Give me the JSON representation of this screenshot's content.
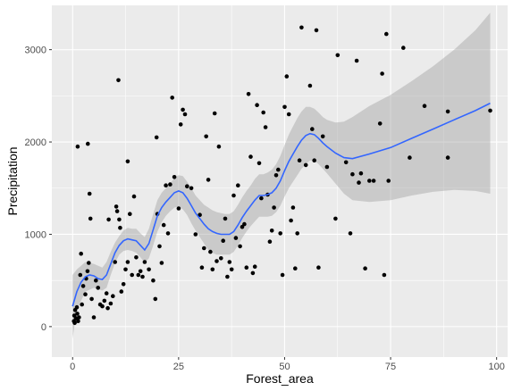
{
  "chart_data": {
    "type": "scatter",
    "xlabel": "Forest_area",
    "ylabel": "Precipitation",
    "xlim": [
      -4.9,
      102.6
    ],
    "ylim": [
      -330,
      3480
    ],
    "xticks": [
      0,
      25,
      50,
      75,
      100
    ],
    "yticks": [
      0,
      1000,
      2000,
      3000
    ],
    "grid": true,
    "colors": {
      "panel": "#ebebeb",
      "grid_major": "#ffffff",
      "point": "#000000",
      "smooth": "#3366ff",
      "ribbon": "#999999"
    },
    "points": [
      [
        0.3,
        60
      ],
      [
        0.4,
        120
      ],
      [
        0.5,
        40
      ],
      [
        0.6,
        180
      ],
      [
        0.8,
        90
      ],
      [
        1.0,
        210
      ],
      [
        1.1,
        140
      ],
      [
        1.3,
        60
      ],
      [
        1.5,
        100
      ],
      [
        1.2,
        1950
      ],
      [
        1.8,
        560
      ],
      [
        2.0,
        790
      ],
      [
        2.2,
        240
      ],
      [
        2.5,
        440
      ],
      [
        3.0,
        350
      ],
      [
        3.2,
        520
      ],
      [
        3.5,
        600
      ],
      [
        3.8,
        690
      ],
      [
        4.0,
        1440
      ],
      [
        3.6,
        1980
      ],
      [
        4.2,
        1170
      ],
      [
        4.5,
        300
      ],
      [
        5.0,
        100
      ],
      [
        5.5,
        500
      ],
      [
        6.0,
        420
      ],
      [
        6.5,
        240
      ],
      [
        7.0,
        220
      ],
      [
        7.5,
        280
      ],
      [
        8.0,
        360
      ],
      [
        8.3,
        200
      ],
      [
        8.5,
        1160
      ],
      [
        9.0,
        250
      ],
      [
        9.5,
        330
      ],
      [
        10.0,
        700
      ],
      [
        10.3,
        1300
      ],
      [
        10.5,
        1250
      ],
      [
        11.0,
        1160
      ],
      [
        11.2,
        1070
      ],
      [
        11.5,
        380
      ],
      [
        10.8,
        2670
      ],
      [
        12.0,
        460
      ],
      [
        12.5,
        620
      ],
      [
        13.0,
        700
      ],
      [
        13.5,
        1220
      ],
      [
        13.0,
        1790
      ],
      [
        14.0,
        560
      ],
      [
        14.5,
        1410
      ],
      [
        15.0,
        750
      ],
      [
        15.5,
        560
      ],
      [
        16.0,
        600
      ],
      [
        16.5,
        540
      ],
      [
        17.0,
        700
      ],
      [
        18.0,
        620
      ],
      [
        19.0,
        500
      ],
      [
        19.5,
        300
      ],
      [
        19.8,
        2050
      ],
      [
        20.0,
        1220
      ],
      [
        20.5,
        870
      ],
      [
        21.0,
        690
      ],
      [
        21.5,
        1100
      ],
      [
        22.0,
        1530
      ],
      [
        22.5,
        1010
      ],
      [
        23.0,
        1540
      ],
      [
        23.5,
        2480
      ],
      [
        24.0,
        1620
      ],
      [
        25.0,
        1280
      ],
      [
        25.5,
        2190
      ],
      [
        26.0,
        2350
      ],
      [
        26.5,
        2300
      ],
      [
        27.0,
        1520
      ],
      [
        28.0,
        1500
      ],
      [
        29.0,
        1000
      ],
      [
        30.0,
        1210
      ],
      [
        30.5,
        640
      ],
      [
        31.0,
        850
      ],
      [
        31.5,
        2060
      ],
      [
        32.0,
        1590
      ],
      [
        32.5,
        810
      ],
      [
        33.0,
        620
      ],
      [
        33.5,
        2310
      ],
      [
        34.0,
        710
      ],
      [
        34.5,
        1950
      ],
      [
        35.0,
        740
      ],
      [
        35.5,
        930
      ],
      [
        36.0,
        1170
      ],
      [
        36.5,
        540
      ],
      [
        37.0,
        700
      ],
      [
        37.5,
        620
      ],
      [
        38.0,
        1420
      ],
      [
        38.5,
        960
      ],
      [
        39.0,
        1530
      ],
      [
        39.5,
        870
      ],
      [
        40.0,
        1080
      ],
      [
        40.5,
        1110
      ],
      [
        41.0,
        640
      ],
      [
        41.5,
        2520
      ],
      [
        42.0,
        1840
      ],
      [
        42.5,
        580
      ],
      [
        43.0,
        650
      ],
      [
        43.5,
        2400
      ],
      [
        44.0,
        1770
      ],
      [
        44.5,
        1390
      ],
      [
        45.0,
        2320
      ],
      [
        45.5,
        2160
      ],
      [
        46.0,
        1430
      ],
      [
        46.5,
        920
      ],
      [
        47.0,
        1040
      ],
      [
        47.5,
        1290
      ],
      [
        48.0,
        1640
      ],
      [
        48.5,
        1700
      ],
      [
        49.0,
        1010
      ],
      [
        49.5,
        560
      ],
      [
        50.0,
        2380
      ],
      [
        50.5,
        2710
      ],
      [
        51.0,
        2300
      ],
      [
        51.5,
        1150
      ],
      [
        52.0,
        1290
      ],
      [
        52.5,
        630
      ],
      [
        53.0,
        1010
      ],
      [
        53.5,
        1800
      ],
      [
        54.0,
        3240
      ],
      [
        55.0,
        1750
      ],
      [
        56.0,
        2610
      ],
      [
        56.5,
        2140
      ],
      [
        57.0,
        1800
      ],
      [
        57.5,
        3210
      ],
      [
        58.0,
        640
      ],
      [
        59.0,
        2060
      ],
      [
        60.0,
        1730
      ],
      [
        62.0,
        1170
      ],
      [
        62.5,
        2940
      ],
      [
        64.5,
        1780
      ],
      [
        65.5,
        1010
      ],
      [
        66.0,
        1650
      ],
      [
        67.0,
        2880
      ],
      [
        67.5,
        1560
      ],
      [
        68.0,
        1660
      ],
      [
        69.0,
        630
      ],
      [
        70.0,
        1580
      ],
      [
        71.0,
        1580
      ],
      [
        72.5,
        2200
      ],
      [
        73.0,
        2740
      ],
      [
        74.0,
        3170
      ],
      [
        74.5,
        1580
      ],
      [
        73.5,
        560
      ],
      [
        78.0,
        3020
      ],
      [
        79.5,
        1830
      ],
      [
        83.0,
        2390
      ],
      [
        88.5,
        1830
      ],
      [
        88.5,
        2330
      ],
      [
        98.5,
        2340
      ]
    ],
    "smooth": [
      [
        0,
        220
      ],
      [
        1,
        380
      ],
      [
        2,
        480
      ],
      [
        3,
        540
      ],
      [
        4,
        560
      ],
      [
        5,
        550
      ],
      [
        6,
        520
      ],
      [
        7,
        510
      ],
      [
        8,
        560
      ],
      [
        9,
        680
      ],
      [
        10,
        800
      ],
      [
        11,
        880
      ],
      [
        12,
        930
      ],
      [
        13,
        950
      ],
      [
        14,
        940
      ],
      [
        15,
        930
      ],
      [
        16,
        880
      ],
      [
        17,
        830
      ],
      [
        18,
        900
      ],
      [
        19,
        1050
      ],
      [
        20,
        1200
      ],
      [
        21,
        1290
      ],
      [
        22,
        1350
      ],
      [
        23,
        1400
      ],
      [
        24,
        1450
      ],
      [
        25,
        1470
      ],
      [
        26,
        1450
      ],
      [
        27,
        1390
      ],
      [
        28,
        1310
      ],
      [
        29,
        1230
      ],
      [
        30,
        1170
      ],
      [
        31,
        1110
      ],
      [
        32,
        1060
      ],
      [
        33,
        1030
      ],
      [
        34,
        1010
      ],
      [
        35,
        1000
      ],
      [
        36,
        1000
      ],
      [
        37,
        1000
      ],
      [
        38,
        1030
      ],
      [
        39,
        1100
      ],
      [
        40,
        1180
      ],
      [
        41,
        1250
      ],
      [
        42,
        1310
      ],
      [
        43,
        1370
      ],
      [
        44,
        1420
      ],
      [
        45,
        1420
      ],
      [
        46,
        1430
      ],
      [
        47,
        1450
      ],
      [
        48,
        1500
      ],
      [
        49,
        1580
      ],
      [
        50,
        1690
      ],
      [
        51,
        1790
      ],
      [
        52,
        1870
      ],
      [
        53,
        1950
      ],
      [
        54,
        2020
      ],
      [
        55,
        2070
      ],
      [
        56,
        2090
      ],
      [
        57,
        2080
      ],
      [
        58,
        2040
      ],
      [
        59,
        1990
      ],
      [
        60,
        1950
      ],
      [
        62,
        1880
      ],
      [
        64,
        1830
      ],
      [
        66,
        1820
      ],
      [
        70,
        1870
      ],
      [
        75,
        1940
      ],
      [
        80,
        2040
      ],
      [
        85,
        2140
      ],
      [
        90,
        2240
      ],
      [
        95,
        2340
      ],
      [
        98.5,
        2420
      ]
    ],
    "band": [
      [
        0,
        -130,
        560
      ],
      [
        1,
        180,
        620
      ],
      [
        3,
        380,
        700
      ],
      [
        5,
        420,
        680
      ],
      [
        7,
        390,
        640
      ],
      [
        8,
        420,
        700
      ],
      [
        9,
        560,
        810
      ],
      [
        10,
        690,
        910
      ],
      [
        11,
        780,
        980
      ],
      [
        12,
        820,
        1040
      ],
      [
        13,
        830,
        1070
      ],
      [
        14,
        820,
        1060
      ],
      [
        15,
        800,
        1060
      ],
      [
        16,
        750,
        1010
      ],
      [
        17,
        690,
        970
      ],
      [
        18,
        740,
        1060
      ],
      [
        19,
        880,
        1220
      ],
      [
        20,
        1030,
        1370
      ],
      [
        21,
        1130,
        1450
      ],
      [
        22,
        1200,
        1500
      ],
      [
        23,
        1250,
        1550
      ],
      [
        24,
        1290,
        1610
      ],
      [
        25,
        1300,
        1640
      ],
      [
        26,
        1270,
        1630
      ],
      [
        27,
        1210,
        1570
      ],
      [
        28,
        1120,
        1500
      ],
      [
        29,
        1040,
        1420
      ],
      [
        30,
        970,
        1370
      ],
      [
        31,
        900,
        1320
      ],
      [
        32,
        830,
        1290
      ],
      [
        33,
        800,
        1260
      ],
      [
        34,
        780,
        1240
      ],
      [
        35,
        780,
        1230
      ],
      [
        36,
        780,
        1220
      ],
      [
        37,
        780,
        1220
      ],
      [
        38,
        810,
        1250
      ],
      [
        39,
        880,
        1320
      ],
      [
        40,
        960,
        1400
      ],
      [
        41,
        1030,
        1470
      ],
      [
        42,
        1090,
        1530
      ],
      [
        43,
        1140,
        1600
      ],
      [
        44,
        1190,
        1650
      ],
      [
        45,
        1190,
        1650
      ],
      [
        46,
        1190,
        1670
      ],
      [
        47,
        1200,
        1700
      ],
      [
        48,
        1240,
        1760
      ],
      [
        49,
        1310,
        1850
      ],
      [
        50,
        1410,
        1970
      ],
      [
        51,
        1500,
        2080
      ],
      [
        52,
        1570,
        2170
      ],
      [
        53,
        1640,
        2260
      ],
      [
        54,
        1710,
        2330
      ],
      [
        55,
        1760,
        2380
      ],
      [
        56,
        1800,
        2380
      ],
      [
        57,
        1800,
        2360
      ],
      [
        58,
        1760,
        2320
      ],
      [
        59,
        1710,
        2270
      ],
      [
        60,
        1660,
        2240
      ],
      [
        62,
        1550,
        2210
      ],
      [
        64,
        1440,
        2220
      ],
      [
        66,
        1370,
        2270
      ],
      [
        70,
        1350,
        2390
      ],
      [
        75,
        1370,
        2510
      ],
      [
        80,
        1420,
        2660
      ],
      [
        85,
        1460,
        2820
      ],
      [
        90,
        1480,
        3000
      ],
      [
        95,
        1470,
        3210
      ],
      [
        98.5,
        1440,
        3400
      ]
    ]
  }
}
